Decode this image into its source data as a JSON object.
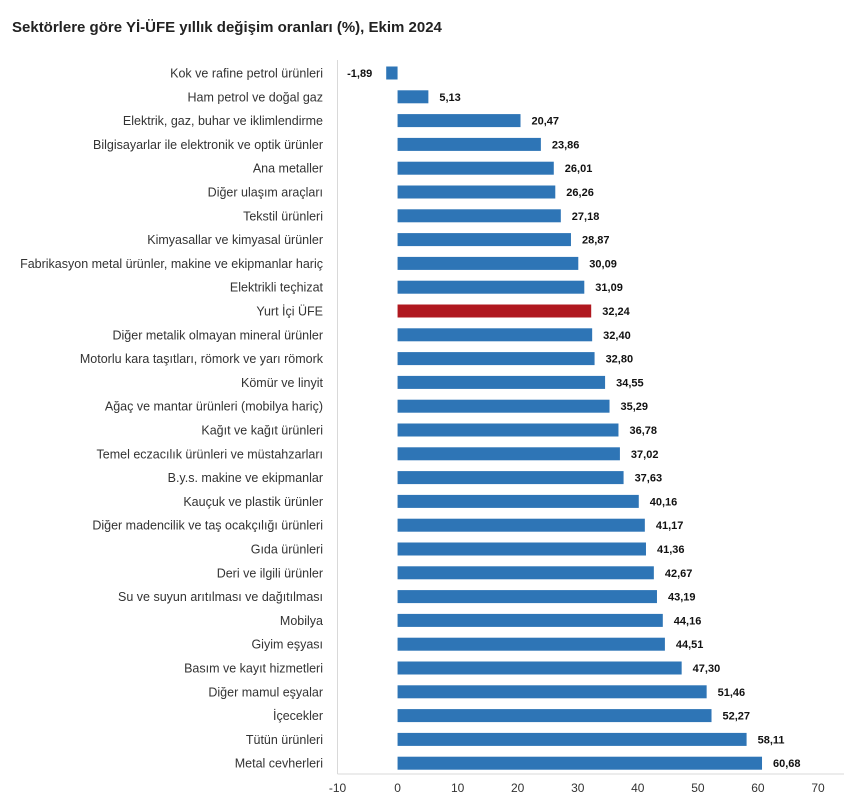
{
  "chart_data": {
    "type": "bar",
    "orientation": "horizontal",
    "title": "Sektörlere göre Yİ-ÜFE yıllık değişim oranları (%), Ekim 2024",
    "xlim": [
      -10,
      70
    ],
    "ticks": [
      -10,
      0,
      10,
      20,
      30,
      40,
      50,
      60,
      70
    ],
    "grid": false,
    "legend": "none",
    "colors": {
      "default": "#2e75b6",
      "highlight": "#b0181f"
    },
    "highlight": "Yurt İçi ÜFE",
    "categories": [
      "Kok ve rafine petrol ürünleri",
      "Ham petrol ve doğal gaz",
      "Elektrik, gaz, buhar ve iklimlendirme",
      "Bilgisayarlar ile elektronik ve optik ürünler",
      "Ana metaller",
      "Diğer ulaşım araçları",
      "Tekstil ürünleri",
      "Kimyasallar ve kimyasal ürünler",
      "Fabrikasyon metal ürünler, makine ve ekipmanlar hariç",
      "Elektrikli teçhizat",
      "Yurt İçi ÜFE",
      "Diğer metalik olmayan mineral ürünler",
      "Motorlu kara taşıtları, römork ve yarı römork",
      "Kömür ve linyit",
      "Ağaç ve mantar ürünleri (mobilya hariç)",
      "Kağıt ve kağıt ürünleri",
      "Temel eczacılık ürünleri ve müstahzarları",
      "B.y.s. makine ve ekipmanlar",
      "Kauçuk ve plastik ürünler",
      "Diğer madencilik ve taş ocakçılığı ürünleri",
      "Gıda ürünleri",
      "Deri ve ilgili ürünler",
      "Su ve suyun arıtılması ve dağıtılması",
      "Mobilya",
      "Giyim eşyası",
      "Basım ve kayıt hizmetleri",
      "Diğer mamul eşyalar",
      "İçecekler",
      "Tütün ürünleri",
      "Metal cevherleri"
    ],
    "values": [
      -1.89,
      5.13,
      20.47,
      23.86,
      26.01,
      26.26,
      27.18,
      28.87,
      30.09,
      31.09,
      32.24,
      32.4,
      32.8,
      34.55,
      35.29,
      36.78,
      37.02,
      37.63,
      40.16,
      41.17,
      41.36,
      42.67,
      43.19,
      44.16,
      44.51,
      47.3,
      51.46,
      52.27,
      58.11,
      60.68
    ],
    "value_labels": [
      "-1,89",
      "5,13",
      "20,47",
      "23,86",
      "26,01",
      "26,26",
      "27,18",
      "28,87",
      "30,09",
      "31,09",
      "32,24",
      "32,40",
      "32,80",
      "34,55",
      "35,29",
      "36,78",
      "37,02",
      "37,63",
      "40,16",
      "41,17",
      "41,36",
      "42,67",
      "43,19",
      "44,16",
      "44,51",
      "47,30",
      "51,46",
      "52,27",
      "58,11",
      "60,68"
    ]
  }
}
